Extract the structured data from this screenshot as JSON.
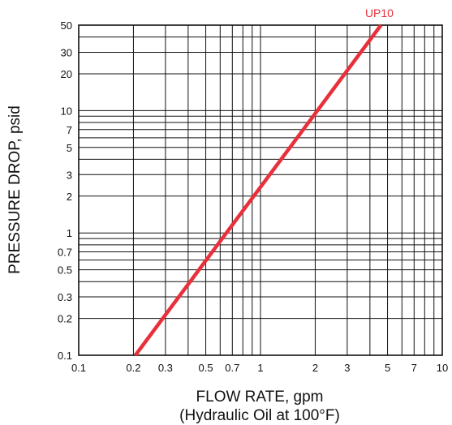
{
  "chart_data": {
    "type": "line",
    "x_scale": "log",
    "y_scale": "log",
    "xlim": [
      0.1,
      10
    ],
    "ylim": [
      0.1,
      50
    ],
    "grid": true,
    "xlabel": "FLOW RATE, gpm",
    "xlabel_sub": "(Hydraulic Oil at 100°F)",
    "ylabel": "PRESSURE DROP, psid",
    "x_ticks": [
      {
        "value": 0.1,
        "label": "0.1"
      },
      {
        "value": 0.2,
        "label": "0.2"
      },
      {
        "value": 0.3,
        "label": "0.3"
      },
      {
        "value": 0.5,
        "label": "0.5"
      },
      {
        "value": 0.7,
        "label": "0.7"
      },
      {
        "value": 1,
        "label": "1"
      },
      {
        "value": 2,
        "label": "2"
      },
      {
        "value": 3,
        "label": "3"
      },
      {
        "value": 5,
        "label": "5"
      },
      {
        "value": 7,
        "label": "7"
      },
      {
        "value": 10,
        "label": "10"
      }
    ],
    "y_ticks": [
      {
        "value": 0.1,
        "label": "0.1"
      },
      {
        "value": 0.2,
        "label": "0.2"
      },
      {
        "value": 0.3,
        "label": "0.3"
      },
      {
        "value": 0.5,
        "label": "0.5"
      },
      {
        "value": 0.7,
        "label": "0.7"
      },
      {
        "value": 1,
        "label": "1"
      },
      {
        "value": 2,
        "label": "2"
      },
      {
        "value": 3,
        "label": "3"
      },
      {
        "value": 5,
        "label": "5"
      },
      {
        "value": 7,
        "label": "7"
      },
      {
        "value": 10,
        "label": "10"
      },
      {
        "value": 20,
        "label": "20"
      },
      {
        "value": 30,
        "label": "30"
      },
      {
        "value": 50,
        "label": "50"
      }
    ],
    "series": [
      {
        "name": "UP10",
        "color": "#e8303a",
        "x": [
          0.205,
          4.6
        ],
        "y": [
          0.1,
          50
        ]
      }
    ]
  }
}
